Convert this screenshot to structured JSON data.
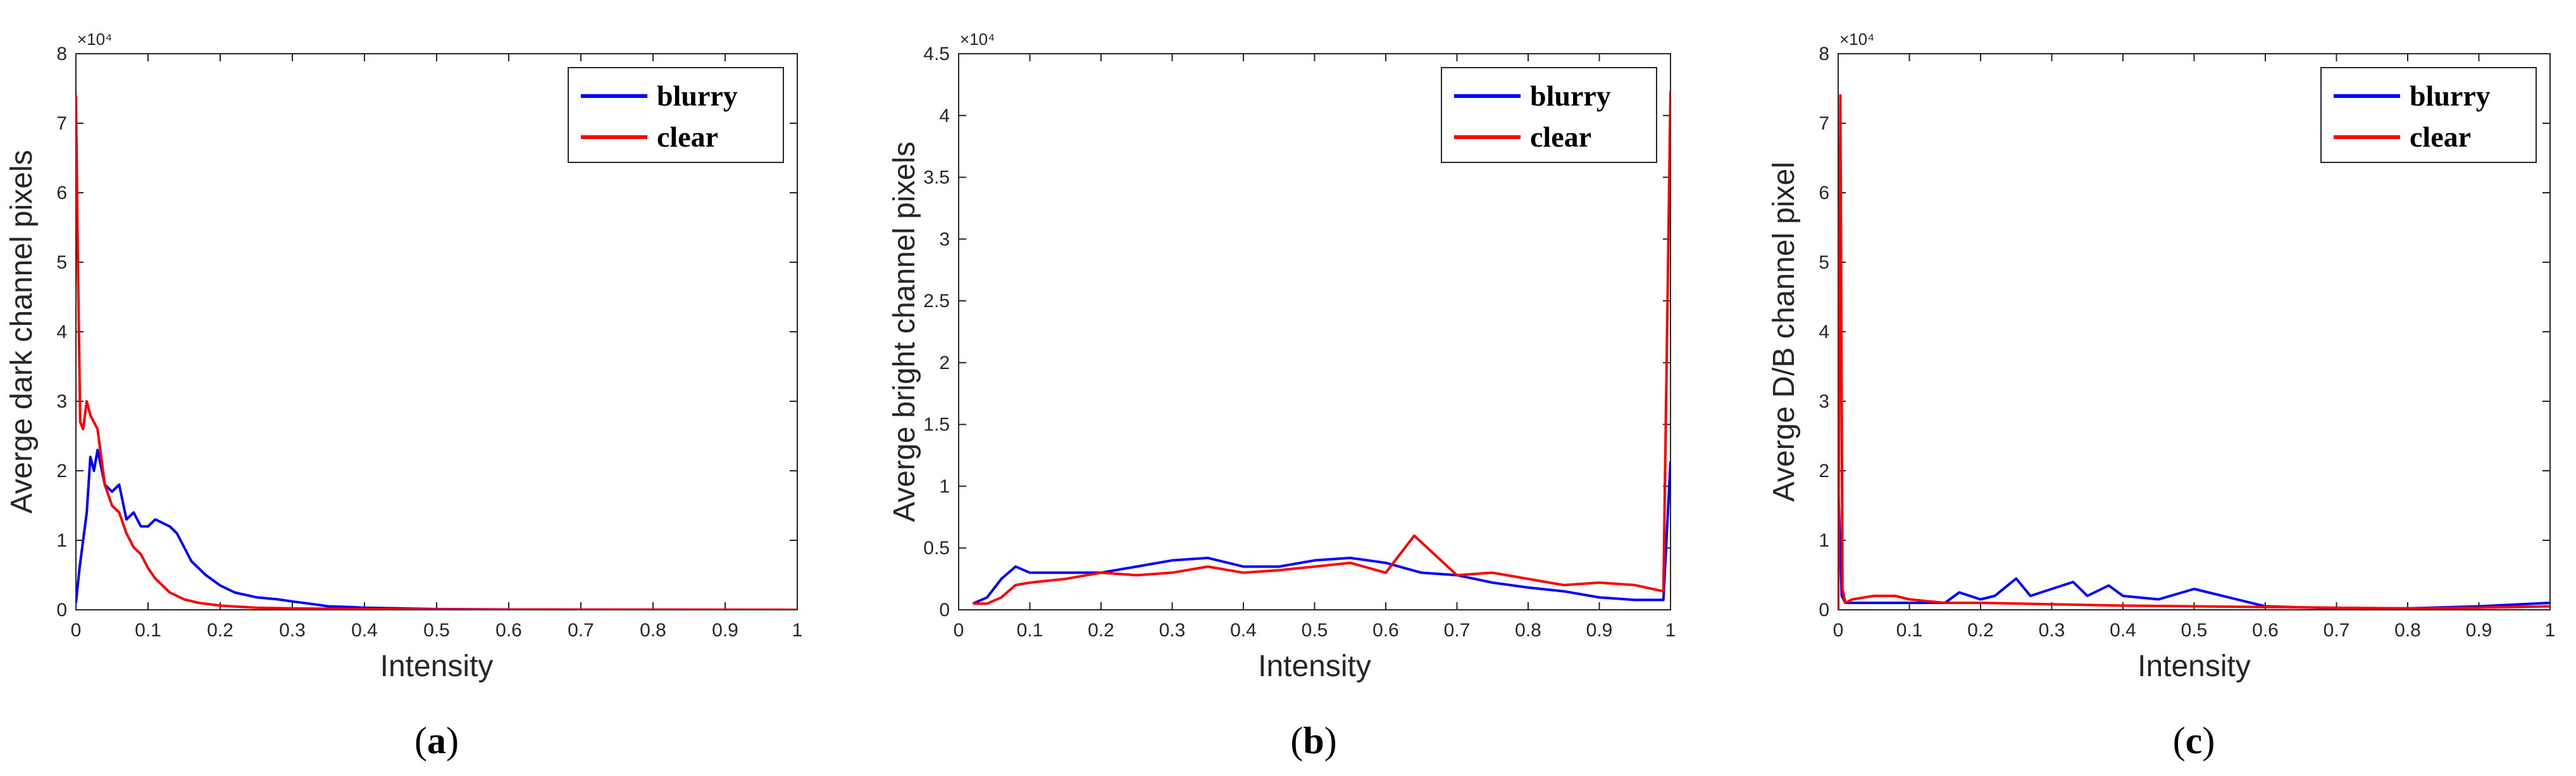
{
  "chart_data": [
    {
      "type": "line",
      "panel_label": "a",
      "xlabel": "Intensity",
      "ylabel": "Averge dark channel  pixels",
      "exponent_label": "×10⁴",
      "xlim": [
        0,
        1
      ],
      "ylim": [
        0,
        8
      ],
      "x_ticks": [
        "0",
        "0.1",
        "0.2",
        "0.3",
        "0.4",
        "0.5",
        "0.6",
        "0.7",
        "0.8",
        "0.9",
        "1"
      ],
      "y_ticks": [
        "0",
        "1",
        "2",
        "3",
        "4",
        "5",
        "6",
        "7",
        "8"
      ],
      "legend": [
        "blurry",
        "clear"
      ],
      "legend_position": "top-right",
      "series": [
        {
          "name": "blurry",
          "color": "#0000ff",
          "x": [
            0,
            0.005,
            0.01,
            0.015,
            0.02,
            0.025,
            0.03,
            0.04,
            0.05,
            0.06,
            0.07,
            0.08,
            0.09,
            0.1,
            0.11,
            0.12,
            0.13,
            0.14,
            0.15,
            0.16,
            0.17,
            0.18,
            0.2,
            0.22,
            0.25,
            0.28,
            0.3,
            0.33,
            0.35,
            0.38,
            0.4,
            0.45,
            0.5,
            0.6,
            0.7,
            0.8,
            0.9,
            1.0
          ],
          "values": [
            0.1,
            0.6,
            1.0,
            1.4,
            2.2,
            2.0,
            2.3,
            1.8,
            1.7,
            1.8,
            1.3,
            1.4,
            1.2,
            1.2,
            1.3,
            1.25,
            1.2,
            1.1,
            0.9,
            0.7,
            0.6,
            0.5,
            0.35,
            0.25,
            0.18,
            0.15,
            0.12,
            0.08,
            0.05,
            0.04,
            0.03,
            0.02,
            0.01,
            0.005,
            0.003,
            0.002,
            0.001,
            0.0
          ]
        },
        {
          "name": "clear",
          "color": "#ff0000",
          "x": [
            0,
            0.003,
            0.006,
            0.01,
            0.015,
            0.02,
            0.025,
            0.03,
            0.04,
            0.05,
            0.06,
            0.07,
            0.08,
            0.09,
            0.1,
            0.11,
            0.12,
            0.13,
            0.14,
            0.15,
            0.17,
            0.2,
            0.25,
            0.3,
            0.4,
            0.5,
            0.6,
            0.7,
            0.8,
            0.9,
            1.0
          ],
          "values": [
            7.4,
            4.8,
            2.7,
            2.6,
            3.0,
            2.8,
            2.7,
            2.6,
            1.8,
            1.5,
            1.4,
            1.1,
            0.9,
            0.8,
            0.6,
            0.45,
            0.35,
            0.25,
            0.2,
            0.15,
            0.1,
            0.06,
            0.03,
            0.02,
            0.01,
            0.005,
            0.003,
            0.002,
            0.001,
            0.001,
            0.0
          ]
        }
      ]
    },
    {
      "type": "line",
      "panel_label": "b",
      "xlabel": "Intensity",
      "ylabel": "Averge bright channel  pixels",
      "exponent_label": "×10⁴",
      "xlim": [
        0,
        1
      ],
      "ylim": [
        0,
        4.5
      ],
      "x_ticks": [
        "0",
        "0.1",
        "0.2",
        "0.3",
        "0.4",
        "0.5",
        "0.6",
        "0.7",
        "0.8",
        "0.9",
        "1"
      ],
      "y_ticks": [
        "0",
        "0.5",
        "1",
        "1.5",
        "2",
        "2.5",
        "3",
        "3.5",
        "4",
        "4.5"
      ],
      "legend": [
        "blurry",
        "clear"
      ],
      "legend_position": "top-right",
      "series": [
        {
          "name": "blurry",
          "color": "#0000ff",
          "x": [
            0.02,
            0.04,
            0.06,
            0.08,
            0.1,
            0.15,
            0.2,
            0.25,
            0.3,
            0.35,
            0.4,
            0.45,
            0.5,
            0.55,
            0.6,
            0.65,
            0.7,
            0.75,
            0.8,
            0.85,
            0.9,
            0.95,
            0.99,
            1.0
          ],
          "values": [
            0.05,
            0.1,
            0.25,
            0.35,
            0.3,
            0.3,
            0.3,
            0.35,
            0.4,
            0.42,
            0.35,
            0.35,
            0.4,
            0.42,
            0.38,
            0.3,
            0.28,
            0.22,
            0.18,
            0.15,
            0.1,
            0.08,
            0.08,
            1.2
          ]
        },
        {
          "name": "clear",
          "color": "#ff0000",
          "x": [
            0.02,
            0.04,
            0.06,
            0.08,
            0.1,
            0.15,
            0.2,
            0.25,
            0.3,
            0.35,
            0.4,
            0.45,
            0.5,
            0.55,
            0.6,
            0.64,
            0.7,
            0.75,
            0.8,
            0.85,
            0.9,
            0.95,
            0.99,
            1.0
          ],
          "values": [
            0.05,
            0.05,
            0.1,
            0.2,
            0.22,
            0.25,
            0.3,
            0.28,
            0.3,
            0.35,
            0.3,
            0.32,
            0.35,
            0.38,
            0.3,
            0.6,
            0.28,
            0.3,
            0.25,
            0.2,
            0.22,
            0.2,
            0.15,
            4.2
          ]
        }
      ]
    },
    {
      "type": "line",
      "panel_label": "c",
      "xlabel": "Intensity",
      "ylabel": "Averge D/B channel  pixel",
      "exponent_label": "×10⁴",
      "xlim": [
        0,
        1
      ],
      "ylim": [
        0,
        8
      ],
      "x_ticks": [
        "0",
        "0.1",
        "0.2",
        "0.3",
        "0.4",
        "0.5",
        "0.6",
        "0.7",
        "0.8",
        "0.9",
        "1"
      ],
      "y_ticks": [
        "0",
        "1",
        "2",
        "3",
        "4",
        "5",
        "6",
        "7",
        "8"
      ],
      "legend": [
        "blurry",
        "clear"
      ],
      "legend_position": "top-right",
      "series": [
        {
          "name": "blurry",
          "color": "#0000ff",
          "x": [
            0,
            0.005,
            0.01,
            0.02,
            0.05,
            0.1,
            0.15,
            0.17,
            0.2,
            0.22,
            0.25,
            0.27,
            0.3,
            0.33,
            0.35,
            0.38,
            0.4,
            0.45,
            0.5,
            0.6,
            0.7,
            0.8,
            0.9,
            1.0
          ],
          "values": [
            1.8,
            0.2,
            0.1,
            0.1,
            0.1,
            0.1,
            0.1,
            0.25,
            0.15,
            0.2,
            0.45,
            0.2,
            0.3,
            0.4,
            0.2,
            0.35,
            0.2,
            0.15,
            0.3,
            0.05,
            0.02,
            0.02,
            0.05,
            0.1
          ]
        },
        {
          "name": "clear",
          "color": "#ff0000",
          "x": [
            0,
            0.003,
            0.006,
            0.01,
            0.02,
            0.05,
            0.08,
            0.1,
            0.15,
            0.2,
            0.3,
            0.4,
            0.5,
            0.6,
            0.7,
            0.8,
            0.9,
            1.0
          ],
          "values": [
            0.0,
            7.4,
            0.3,
            0.1,
            0.15,
            0.2,
            0.2,
            0.15,
            0.1,
            0.1,
            0.08,
            0.06,
            0.05,
            0.04,
            0.03,
            0.02,
            0.03,
            0.05
          ]
        }
      ]
    }
  ]
}
